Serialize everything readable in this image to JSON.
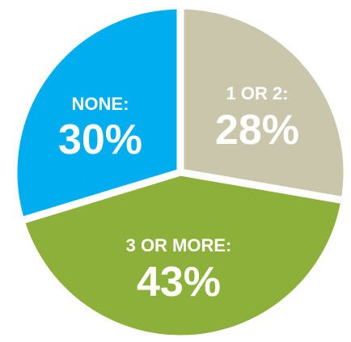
{
  "chart_data": {
    "type": "pie",
    "slices": [
      {
        "category": "NONE:",
        "label": "30%",
        "value": 30,
        "color": "#00aeef"
      },
      {
        "category": "1 OR 2:",
        "label": "28%",
        "value": 28,
        "color": "#c9c6ab"
      },
      {
        "category": "3 OR MORE:",
        "label": "43%",
        "value": 43,
        "color": "#8db03a"
      }
    ]
  }
}
